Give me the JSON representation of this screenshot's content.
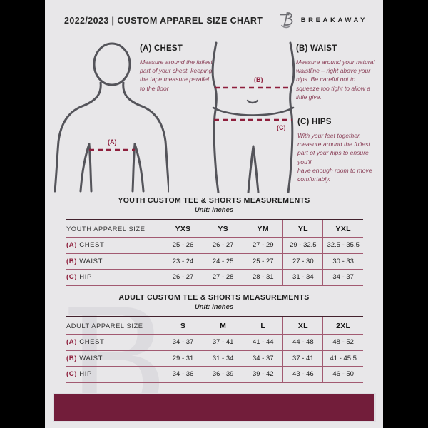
{
  "colors": {
    "canvas_bg": "#000000",
    "flyer_bg": "#e8e7e9",
    "maroon_footer": "#721d3a",
    "dash_red": "#8e1f3c",
    "table_line": "#a25a71",
    "figure_outline": "#54545a",
    "description_text": "#8a3f57"
  },
  "header": {
    "title": "2022/2023  |  CUSTOM APPAREL SIZE CHART",
    "brand": "BREAKAWAY",
    "logo_icon": "breakaway-b-logo"
  },
  "measurement_guide": {
    "chest": {
      "key": "(A)",
      "name": "CHEST",
      "heading": "(A) CHEST",
      "text": "Measure around the fullest part of your chest, keeping the tape measure parallel to the floor"
    },
    "waist": {
      "key": "(B)",
      "name": "WAIST",
      "heading": "(B) WAIST",
      "text": "Measure around your natural waistline – right above your hips. Be careful not to squeeze too tight to allow a little give."
    },
    "hips": {
      "key": "(C)",
      "name": "HIPS",
      "heading": "(C) HIPS",
      "text": "With your feet together, measure around the fullest part of your hips to ensure you'll\nhave enough room to move comfortably."
    }
  },
  "diagram": {
    "chest_label": "(A)",
    "waist_label": "(B)",
    "hips_label": "(C)"
  },
  "tables": [
    {
      "id": "youth",
      "title": "YOUTH CUSTOM TEE & SHORTS MEASUREMENTS",
      "unit": "Unit: Inches",
      "header": [
        "YOUTH APPAREL SIZE",
        "YXS",
        "YS",
        "YM",
        "YL",
        "YXL"
      ],
      "rows": [
        {
          "key": "(A)",
          "label": "CHEST",
          "values": [
            "25 - 26",
            "26 - 27",
            "27 - 29",
            "29 - 32.5",
            "32.5 - 35.5"
          ]
        },
        {
          "key": "(B)",
          "label": "WAIST",
          "values": [
            "23 - 24",
            "24 - 25",
            "25 - 27",
            "27 - 30",
            "30 - 33"
          ]
        },
        {
          "key": "(C)",
          "label": "HIP",
          "values": [
            "26 - 27",
            "27 - 28",
            "28 - 31",
            "31 - 34",
            "34 - 37"
          ]
        }
      ]
    },
    {
      "id": "adult",
      "title": "ADULT CUSTOM TEE & SHORTS MEASUREMENTS",
      "unit": "Unit: Inches",
      "header": [
        "ADULT APPAREL SIZE",
        "S",
        "M",
        "L",
        "XL",
        "2XL"
      ],
      "rows": [
        {
          "key": "(A)",
          "label": "CHEST",
          "values": [
            "34 - 37",
            "37 - 41",
            "41 - 44",
            "44 - 48",
            "48 - 52"
          ]
        },
        {
          "key": "(B)",
          "label": "WAIST",
          "values": [
            "29 - 31",
            "31 - 34",
            "34 - 37",
            "37 - 41",
            "41 - 45.5"
          ]
        },
        {
          "key": "(C)",
          "label": "HIP",
          "values": [
            "34 - 36",
            "36 - 39",
            "39 - 42",
            "43 - 46",
            "46 - 50"
          ]
        }
      ]
    }
  ],
  "watermark": "B"
}
